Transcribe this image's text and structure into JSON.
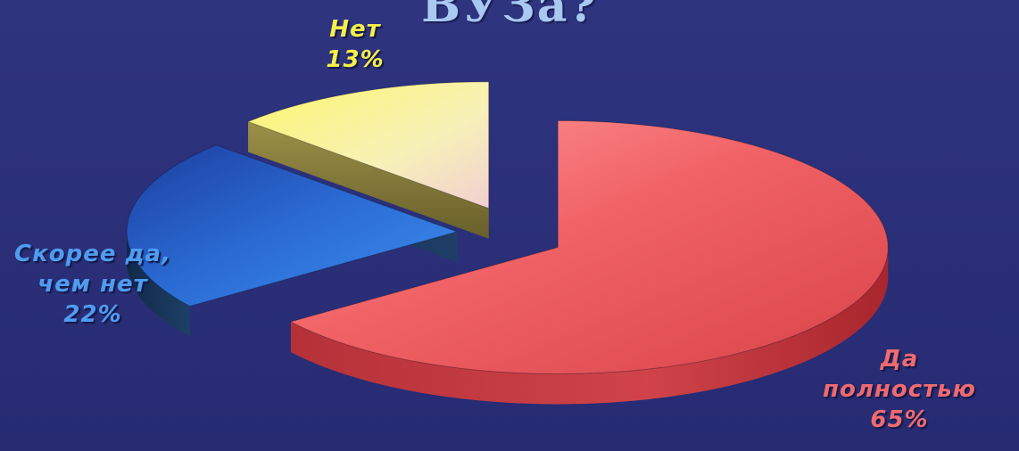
{
  "chart_data": {
    "type": "pie",
    "title": "ВУЗа?",
    "slices": [
      {
        "label_lines": [
          "Да",
          "полностью"
        ],
        "percent_label": "65%",
        "value": 65,
        "color": "#e8555a"
      },
      {
        "label_lines": [
          "Скорее да,",
          "чем нет"
        ],
        "percent_label": "22%",
        "value": 22,
        "color": "#2c6fd6"
      },
      {
        "label_lines": [
          "Нет"
        ],
        "percent_label": "13%",
        "value": 13,
        "color": "#f4ee7a"
      }
    ],
    "legend": "none",
    "style": "3d-exploded"
  }
}
